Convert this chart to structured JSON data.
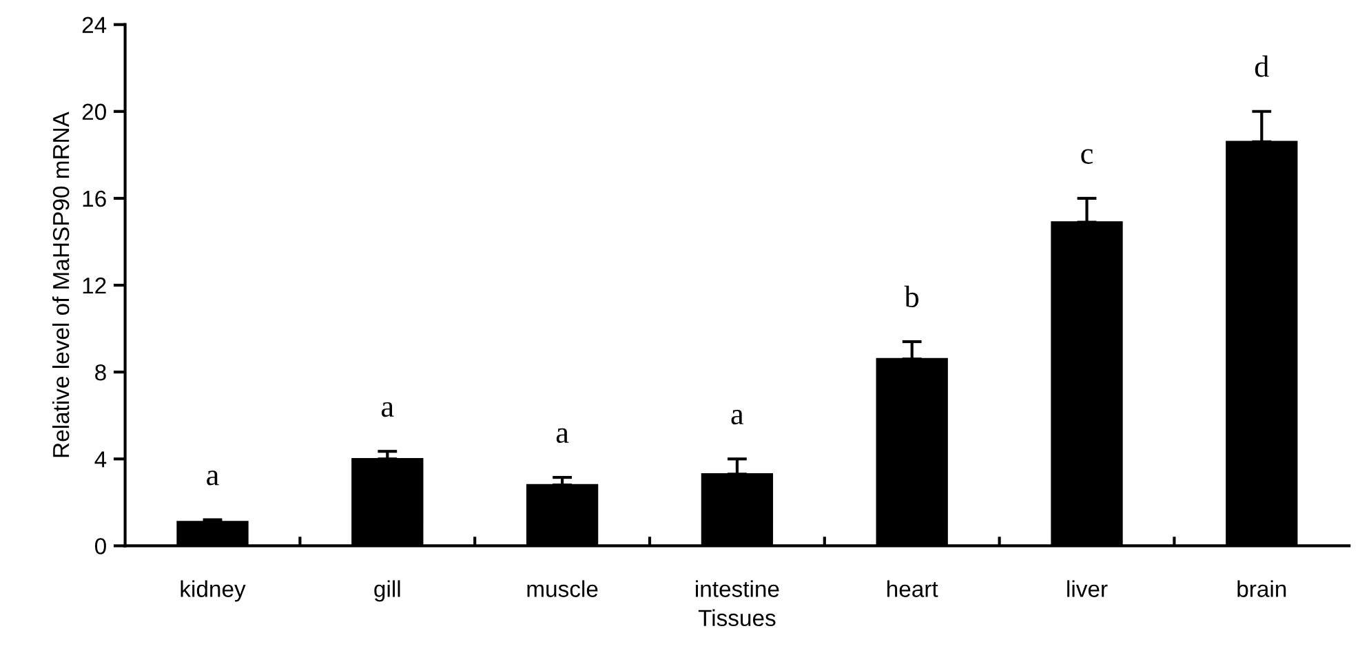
{
  "chart_data": {
    "type": "bar",
    "xlabel": "Tissues",
    "ylabel": "Relative level of MaHSP90 mRNA",
    "categories": [
      "kidney",
      "gill",
      "muscle",
      "intestine",
      "heart",
      "liver",
      "brain"
    ],
    "values": [
      1.1,
      4.0,
      2.8,
      3.3,
      8.6,
      14.9,
      18.6
    ],
    "errors": [
      0.1,
      0.35,
      0.35,
      0.7,
      0.8,
      1.1,
      1.4
    ],
    "color": "#000000",
    "ylim": [
      0,
      24
    ],
    "yticks": [
      0,
      4,
      8,
      12,
      16,
      20,
      24
    ],
    "grid": false,
    "legend": false,
    "annotations": [
      "a",
      "a",
      "a",
      "a",
      "b",
      "c",
      "d"
    ]
  }
}
